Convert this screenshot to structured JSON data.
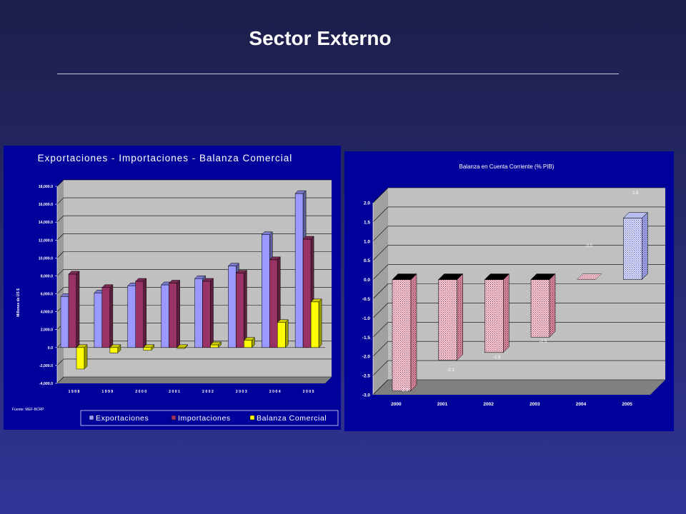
{
  "slide": {
    "title": "Sector Externo"
  },
  "colors": {
    "exportaciones": "#9999ff",
    "importaciones": "#993366",
    "balanza": "#ffff00",
    "panel_bg": "#00009a",
    "plot_wall": "#c0c0c0"
  },
  "chart_data": [
    {
      "type": "bar",
      "title": "Exportaciones - Importaciones - Balanza Comercial",
      "xlabel": "",
      "ylabel": "Millones de US $",
      "categories": [
        "1998",
        "1999",
        "2000",
        "2001",
        "2002",
        "2003",
        "2004",
        "2005"
      ],
      "series": [
        {
          "name": "Exportaciones",
          "values": [
            5700,
            6100,
            6900,
            7000,
            7700,
            9100,
            12600,
            17200
          ]
        },
        {
          "name": "Importaciones",
          "values": [
            8200,
            6700,
            7400,
            7200,
            7400,
            8300,
            9800,
            12100
          ]
        },
        {
          "name": "Balanza Comercial",
          "values": [
            -2400,
            -600,
            -300,
            -100,
            300,
            800,
            2800,
            5100
          ]
        }
      ],
      "ylim": [
        -4000,
        18000
      ],
      "yticks": [
        "18,000.0",
        "16,000.0",
        "14,000.0",
        "12,000.0",
        "10,000.0",
        "8,000.0",
        "6,000.0",
        "4,000.0",
        "2,000.0",
        "0.0",
        "-2,000.0",
        "-4,000.0"
      ],
      "xticks": [
        "1 9 9 8",
        "1 9 9 9",
        "2 0 0 0",
        "2 0 0 1",
        "2 0 0 2",
        "2 0 0 3",
        "2 0 0 4",
        "2 0 0 5"
      ],
      "legend": [
        "Exportaciones",
        "Importaciones",
        "Balanza Comercial"
      ],
      "legend_position": "bottom",
      "source": "Fuente: MEF-BCRP",
      "grid": true
    },
    {
      "type": "bar",
      "title": "Balanza en Cuenta Corriente (% PIB)",
      "xlabel": "",
      "ylabel": "",
      "categories": [
        "2000",
        "2001",
        "2002",
        "2003",
        "2004",
        "2005"
      ],
      "series": [
        {
          "name": "",
          "values": [
            -2.9,
            -2.1,
            -1.9,
            -1.5,
            0.0,
            1.6
          ]
        }
      ],
      "data_labels": [
        "-2.9",
        "-2.1",
        "-1.9",
        "-1.5",
        "0.0",
        "1.6"
      ],
      "ylim": [
        -3.0,
        2.0
      ],
      "yticks": [
        "2.0",
        "1.5",
        "1.0",
        "0.5",
        "0.0",
        "-0.5",
        "-1.0",
        "-1.5",
        "-2.0",
        "-2.5",
        "-3.0"
      ],
      "legend": [],
      "grid": true
    }
  ]
}
